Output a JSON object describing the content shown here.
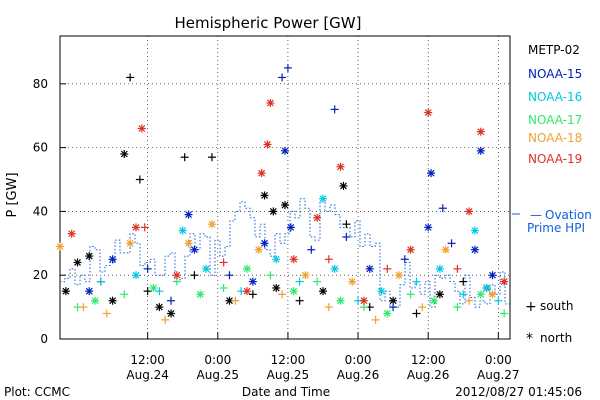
{
  "chart_data": {
    "type": "scatter",
    "title": "Hemispheric Power [GW]",
    "xlabel": "Date and Time",
    "ylabel": "P [GW]",
    "ylim": [
      0,
      95
    ],
    "xlim": [
      "2012-08-23T21:00",
      "2012-08-27T02:00"
    ],
    "y_ticks": [
      0,
      20,
      40,
      60,
      80
    ],
    "x_ticks": [
      {
        "time": "2012-08-24T12:00",
        "line1": "12:00",
        "line2": "Aug.24"
      },
      {
        "time": "2012-08-25T00:00",
        "line1": "0:00",
        "line2": "Aug.25"
      },
      {
        "time": "2012-08-25T12:00",
        "line1": "12:00",
        "line2": "Aug.25"
      },
      {
        "time": "2012-08-26T00:00",
        "line1": "0:00",
        "line2": "Aug.26"
      },
      {
        "time": "2012-08-26T12:00",
        "line1": "12:00",
        "line2": "Aug.26"
      },
      {
        "time": "2012-08-27T00:00",
        "line1": "0:00",
        "line2": "Aug.27"
      }
    ],
    "legend_position": "right",
    "series": [
      {
        "name": "METP-02",
        "color": "#000000",
        "points": [
          [
            "2012-08-24T09:00",
            82,
            "south"
          ],
          [
            "2012-08-24T08:00",
            58,
            "north"
          ],
          [
            "2012-08-24T10:40",
            50,
            "south"
          ],
          [
            "2012-08-24T18:20",
            57,
            "south"
          ],
          [
            "2012-08-24T23:00",
            57,
            "south"
          ],
          [
            "2012-08-25T08:00",
            45,
            "north"
          ],
          [
            "2012-08-25T09:30",
            40,
            "north"
          ],
          [
            "2012-08-25T11:30",
            42,
            "north"
          ],
          [
            "2012-08-25T21:30",
            48,
            "north"
          ],
          [
            "2012-08-25T22:00",
            36,
            "south"
          ],
          [
            "2012-08-23T22:00",
            15,
            "north"
          ],
          [
            "2012-08-24T00:00",
            24,
            "north"
          ],
          [
            "2012-08-24T02:00",
            26,
            "north"
          ],
          [
            "2012-08-24T04:00",
            18,
            "south"
          ],
          [
            "2012-08-24T06:00",
            12,
            "north"
          ],
          [
            "2012-08-24T12:00",
            15,
            "south"
          ],
          [
            "2012-08-24T14:00",
            10,
            "north"
          ],
          [
            "2012-08-24T16:00",
            8,
            "north"
          ],
          [
            "2012-08-24T20:00",
            20,
            "south"
          ],
          [
            "2012-08-25T02:00",
            12,
            "north"
          ],
          [
            "2012-08-25T06:00",
            14,
            "south"
          ],
          [
            "2012-08-25T10:00",
            16,
            "north"
          ],
          [
            "2012-08-25T14:00",
            12,
            "south"
          ],
          [
            "2012-08-25T18:00",
            15,
            "north"
          ],
          [
            "2012-08-26T02:00",
            10,
            "south"
          ],
          [
            "2012-08-26T06:00",
            12,
            "north"
          ],
          [
            "2012-08-26T10:00",
            8,
            "south"
          ],
          [
            "2012-08-26T14:00",
            14,
            "north"
          ],
          [
            "2012-08-26T18:00",
            18,
            "south"
          ],
          [
            "2012-08-26T22:00",
            16,
            "north"
          ]
        ]
      },
      {
        "name": "NOAA-15",
        "color": "#0020c0",
        "points": [
          [
            "2012-08-25T11:00",
            82,
            "south"
          ],
          [
            "2012-08-25T12:00",
            85,
            "south"
          ],
          [
            "2012-08-25T20:00",
            72,
            "south"
          ],
          [
            "2012-08-25T11:30",
            59,
            "north"
          ],
          [
            "2012-08-26T12:30",
            52,
            "north"
          ],
          [
            "2012-08-26T14:30",
            41,
            "south"
          ],
          [
            "2012-08-26T21:00",
            59,
            "north"
          ],
          [
            "2012-08-24T19:00",
            39,
            "north"
          ],
          [
            "2012-08-24T06:00",
            25,
            "north"
          ],
          [
            "2012-08-24T12:00",
            22,
            "south"
          ],
          [
            "2012-08-24T20:00",
            28,
            "north"
          ],
          [
            "2012-08-25T02:00",
            20,
            "south"
          ],
          [
            "2012-08-25T08:00",
            30,
            "north"
          ],
          [
            "2012-08-25T12:30",
            35,
            "north"
          ],
          [
            "2012-08-25T16:00",
            28,
            "south"
          ],
          [
            "2012-08-25T22:00",
            32,
            "south"
          ],
          [
            "2012-08-26T02:00",
            22,
            "north"
          ],
          [
            "2012-08-26T08:00",
            25,
            "south"
          ],
          [
            "2012-08-26T12:00",
            35,
            "north"
          ],
          [
            "2012-08-26T16:00",
            30,
            "south"
          ],
          [
            "2012-08-26T20:00",
            28,
            "north"
          ],
          [
            "2012-08-24T02:00",
            15,
            "north"
          ],
          [
            "2012-08-24T16:00",
            12,
            "south"
          ],
          [
            "2012-08-25T06:00",
            18,
            "north"
          ],
          [
            "2012-08-26T06:00",
            10,
            "south"
          ],
          [
            "2012-08-26T23:00",
            20,
            "north"
          ]
        ]
      },
      {
        "name": "NOAA-16",
        "color": "#00c8e0",
        "points": [
          [
            "2012-08-25T18:00",
            44,
            "north"
          ],
          [
            "2012-08-26T20:00",
            34,
            "north"
          ],
          [
            "2012-08-24T18:00",
            34,
            "north"
          ],
          [
            "2012-08-24T04:00",
            18,
            "south"
          ],
          [
            "2012-08-24T10:00",
            20,
            "north"
          ],
          [
            "2012-08-24T14:00",
            15,
            "south"
          ],
          [
            "2012-08-24T22:00",
            22,
            "north"
          ],
          [
            "2012-08-25T04:00",
            15,
            "south"
          ],
          [
            "2012-08-25T10:00",
            25,
            "north"
          ],
          [
            "2012-08-25T14:00",
            18,
            "south"
          ],
          [
            "2012-08-25T20:00",
            22,
            "north"
          ],
          [
            "2012-08-26T00:00",
            12,
            "south"
          ],
          [
            "2012-08-26T04:00",
            15,
            "north"
          ],
          [
            "2012-08-26T10:00",
            18,
            "south"
          ],
          [
            "2012-08-26T14:00",
            22,
            "north"
          ],
          [
            "2012-08-26T18:00",
            14,
            "south"
          ],
          [
            "2012-08-26T22:00",
            16,
            "north"
          ],
          [
            "2012-08-27T00:00",
            12,
            "south"
          ]
        ]
      },
      {
        "name": "NOAA-17",
        "color": "#30e870",
        "points": [
          [
            "2012-08-24T00:00",
            10,
            "south"
          ],
          [
            "2012-08-24T03:00",
            12,
            "north"
          ],
          [
            "2012-08-24T08:00",
            14,
            "south"
          ],
          [
            "2012-08-24T13:00",
            16,
            "north"
          ],
          [
            "2012-08-24T17:00",
            18,
            "south"
          ],
          [
            "2012-08-24T21:00",
            14,
            "north"
          ],
          [
            "2012-08-25T01:00",
            16,
            "south"
          ],
          [
            "2012-08-25T05:00",
            22,
            "north"
          ],
          [
            "2012-08-25T09:00",
            20,
            "south"
          ],
          [
            "2012-08-25T13:00",
            15,
            "north"
          ],
          [
            "2012-08-25T17:00",
            18,
            "south"
          ],
          [
            "2012-08-25T21:00",
            12,
            "north"
          ],
          [
            "2012-08-26T01:00",
            10,
            "south"
          ],
          [
            "2012-08-26T05:00",
            8,
            "north"
          ],
          [
            "2012-08-26T09:00",
            14,
            "south"
          ],
          [
            "2012-08-26T13:00",
            12,
            "north"
          ],
          [
            "2012-08-26T17:00",
            10,
            "south"
          ],
          [
            "2012-08-26T21:00",
            14,
            "north"
          ],
          [
            "2012-08-27T01:00",
            8,
            "south"
          ]
        ]
      },
      {
        "name": "NOAA-18",
        "color": "#f0a030",
        "points": [
          [
            "2012-08-23T21:00",
            29,
            "north"
          ],
          [
            "2012-08-24T01:00",
            10,
            "south"
          ],
          [
            "2012-08-24T05:00",
            8,
            "south"
          ],
          [
            "2012-08-24T09:00",
            30,
            "north"
          ],
          [
            "2012-08-24T15:00",
            6,
            "south"
          ],
          [
            "2012-08-24T19:00",
            30,
            "north"
          ],
          [
            "2012-08-24T23:00",
            36,
            "north"
          ],
          [
            "2012-08-25T03:00",
            12,
            "south"
          ],
          [
            "2012-08-25T07:00",
            28,
            "north"
          ],
          [
            "2012-08-25T11:00",
            14,
            "south"
          ],
          [
            "2012-08-25T15:00",
            20,
            "north"
          ],
          [
            "2012-08-25T19:00",
            10,
            "south"
          ],
          [
            "2012-08-25T23:00",
            18,
            "north"
          ],
          [
            "2012-08-26T03:00",
            6,
            "south"
          ],
          [
            "2012-08-26T07:00",
            20,
            "north"
          ],
          [
            "2012-08-26T11:00",
            10,
            "south"
          ],
          [
            "2012-08-26T15:00",
            28,
            "north"
          ],
          [
            "2012-08-26T19:00",
            12,
            "south"
          ],
          [
            "2012-08-26T23:00",
            14,
            "north"
          ]
        ]
      },
      {
        "name": "NOAA-19",
        "color": "#e03020",
        "points": [
          [
            "2012-08-24T11:00",
            66,
            "north"
          ],
          [
            "2012-08-25T09:00",
            74,
            "north"
          ],
          [
            "2012-08-25T08:30",
            61,
            "north"
          ],
          [
            "2012-08-25T07:30",
            52,
            "north"
          ],
          [
            "2012-08-25T21:00",
            54,
            "north"
          ],
          [
            "2012-08-26T12:00",
            71,
            "north"
          ],
          [
            "2012-08-26T21:00",
            65,
            "north"
          ],
          [
            "2012-08-26T19:00",
            40,
            "north"
          ],
          [
            "2012-08-23T23:00",
            33,
            "north"
          ],
          [
            "2012-08-24T10:00",
            35,
            "north"
          ],
          [
            "2012-08-24T11:30",
            35,
            "south"
          ],
          [
            "2012-08-24T17:00",
            20,
            "north"
          ],
          [
            "2012-08-25T01:00",
            24,
            "south"
          ],
          [
            "2012-08-25T05:00",
            15,
            "north"
          ],
          [
            "2012-08-25T13:00",
            25,
            "north"
          ],
          [
            "2012-08-25T17:00",
            38,
            "north"
          ],
          [
            "2012-08-25T19:00",
            25,
            "south"
          ],
          [
            "2012-08-26T01:00",
            12,
            "north"
          ],
          [
            "2012-08-26T05:00",
            22,
            "south"
          ],
          [
            "2012-08-26T09:00",
            28,
            "north"
          ],
          [
            "2012-08-26T17:00",
            22,
            "south"
          ],
          [
            "2012-08-27T01:00",
            18,
            "north"
          ]
        ]
      }
    ],
    "ovation_hpi": {
      "color": "#1060e0",
      "values": [
        18,
        19,
        22,
        17,
        20,
        18,
        29,
        28,
        21,
        23,
        24,
        31,
        27,
        27,
        33,
        30,
        23,
        24,
        25,
        20,
        20,
        26,
        27,
        18,
        19,
        26,
        33,
        28,
        33,
        32,
        20,
        31,
        26,
        29,
        37,
        40,
        43,
        41,
        38,
        32,
        36,
        28,
        26,
        33,
        30,
        33,
        40,
        38,
        44,
        41,
        32,
        31,
        43,
        40,
        42,
        39,
        35,
        35,
        32,
        37,
        29,
        33,
        29,
        30,
        12,
        15,
        10,
        10,
        17,
        24,
        16,
        18,
        14,
        18,
        10,
        20,
        19,
        20,
        18,
        15,
        11,
        20,
        13,
        10,
        12,
        11,
        17,
        14,
        21,
        11
      ]
    },
    "legend": {
      "entries": [
        "METP-02",
        "NOAA-15",
        "NOAA-16",
        "NOAA-17",
        "NOAA-18",
        "NOAA-19"
      ],
      "colors": [
        "#000000",
        "#0020c0",
        "#00c8e0",
        "#30e870",
        "#f0a030",
        "#e03020"
      ],
      "ovation_dash": "—",
      "ovation_line1": "Ovation",
      "ovation_line2": "Prime HPI",
      "south_label": "south",
      "north_label": "north",
      "south_symbol": "+",
      "north_symbol": "*"
    },
    "footer": {
      "left": "Plot: CCMC",
      "center": "Date and Time",
      "right": "2012/08/27 01:45:06"
    }
  }
}
